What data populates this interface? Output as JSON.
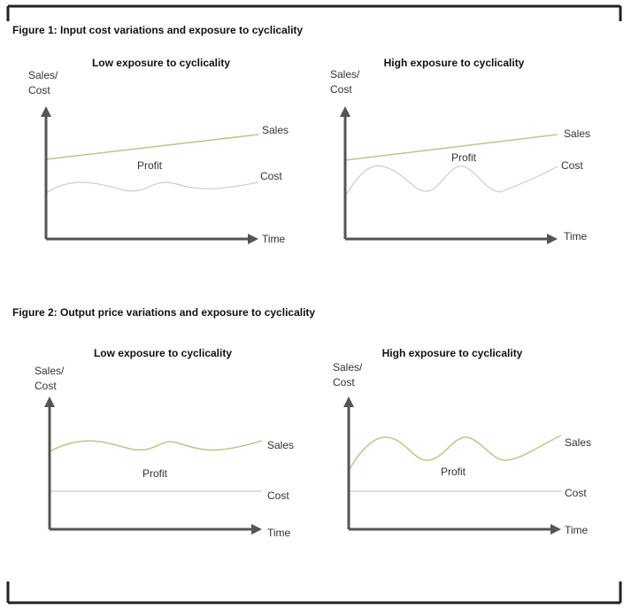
{
  "figures": [
    {
      "title": "Figure 1: Input cost variations and exposure to cyclicality",
      "panels": [
        {
          "title": "Low exposure to cyclicality",
          "y_axis_label": [
            "Sales/",
            "Cost"
          ],
          "x_axis_label": "Time",
          "labels": {
            "sales": "Sales",
            "cost": "Cost",
            "profit": "Profit"
          },
          "sales_color": "#b5c98a",
          "cost_color": "#cccccc"
        },
        {
          "title": "High exposure to cyclicality",
          "y_axis_label": [
            "Sales/",
            "Cost"
          ],
          "x_axis_label": "Time",
          "labels": {
            "sales": "Sales",
            "cost": "Cost",
            "profit": "Profit"
          },
          "sales_color": "#b5c98a",
          "cost_color": "#cccccc"
        }
      ]
    },
    {
      "title": "Figure 2: Output price variations and exposure to cyclicality",
      "panels": [
        {
          "title": "Low exposure to cyclicality",
          "y_axis_label": [
            "Sales/",
            "Cost"
          ],
          "x_axis_label": "Time",
          "labels": {
            "sales": "Sales",
            "cost": "Cost",
            "profit": "Profit"
          },
          "sales_color": "#b5c98a",
          "cost_color": "#cccccc"
        },
        {
          "title": "High exposure to cyclicality",
          "y_axis_label": [
            "Sales/",
            "Cost"
          ],
          "x_axis_label": "Time",
          "labels": {
            "sales": "Sales",
            "cost": "Cost",
            "profit": "Profit"
          },
          "sales_color": "#b5c98a",
          "cost_color": "#cccccc"
        }
      ]
    }
  ],
  "axis_color": "#555555",
  "frame_color": "#222222"
}
